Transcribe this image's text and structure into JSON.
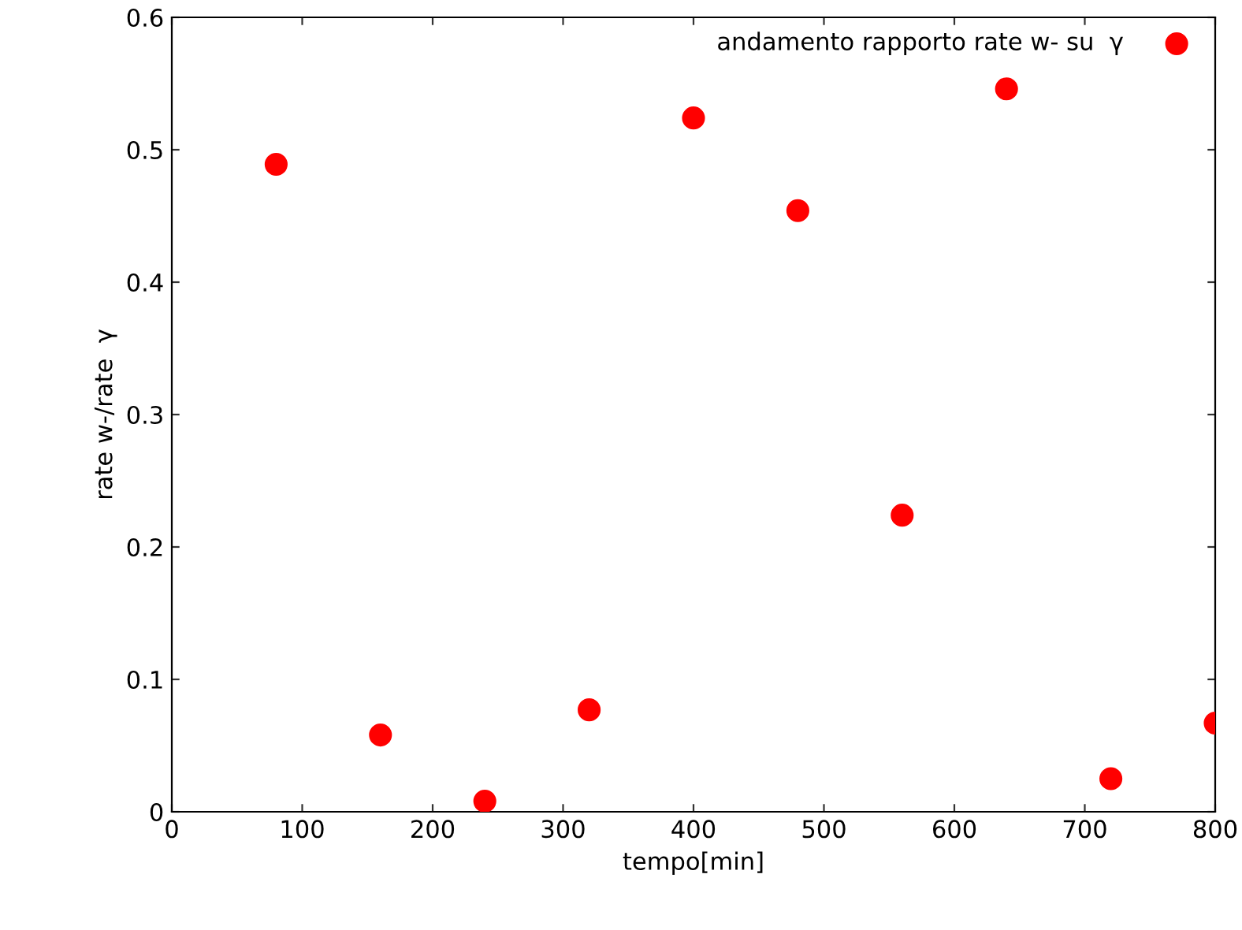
{
  "chart_data": {
    "type": "scatter",
    "xlabel": "tempo[min]",
    "ylabel": "rate w-/rate  γ",
    "x": [
      80,
      160,
      240,
      320,
      400,
      480,
      560,
      640,
      720,
      800
    ],
    "series": [
      {
        "name": "andamento rapporto rate w- su  γ",
        "color": "#ff0000",
        "values": [
          0.489,
          0.058,
          0.008,
          0.077,
          0.524,
          0.454,
          0.224,
          0.546,
          0.025,
          0.067
        ]
      }
    ],
    "xlim": [
      0,
      800
    ],
    "ylim": [
      0,
      0.6
    ],
    "xticks": [
      0,
      100,
      200,
      300,
      400,
      500,
      600,
      700,
      800
    ],
    "yticks": [
      0,
      0.1,
      0.2,
      0.3,
      0.4,
      0.5,
      0.6
    ],
    "marker": "circle",
    "legend": "top right",
    "grid": false
  }
}
